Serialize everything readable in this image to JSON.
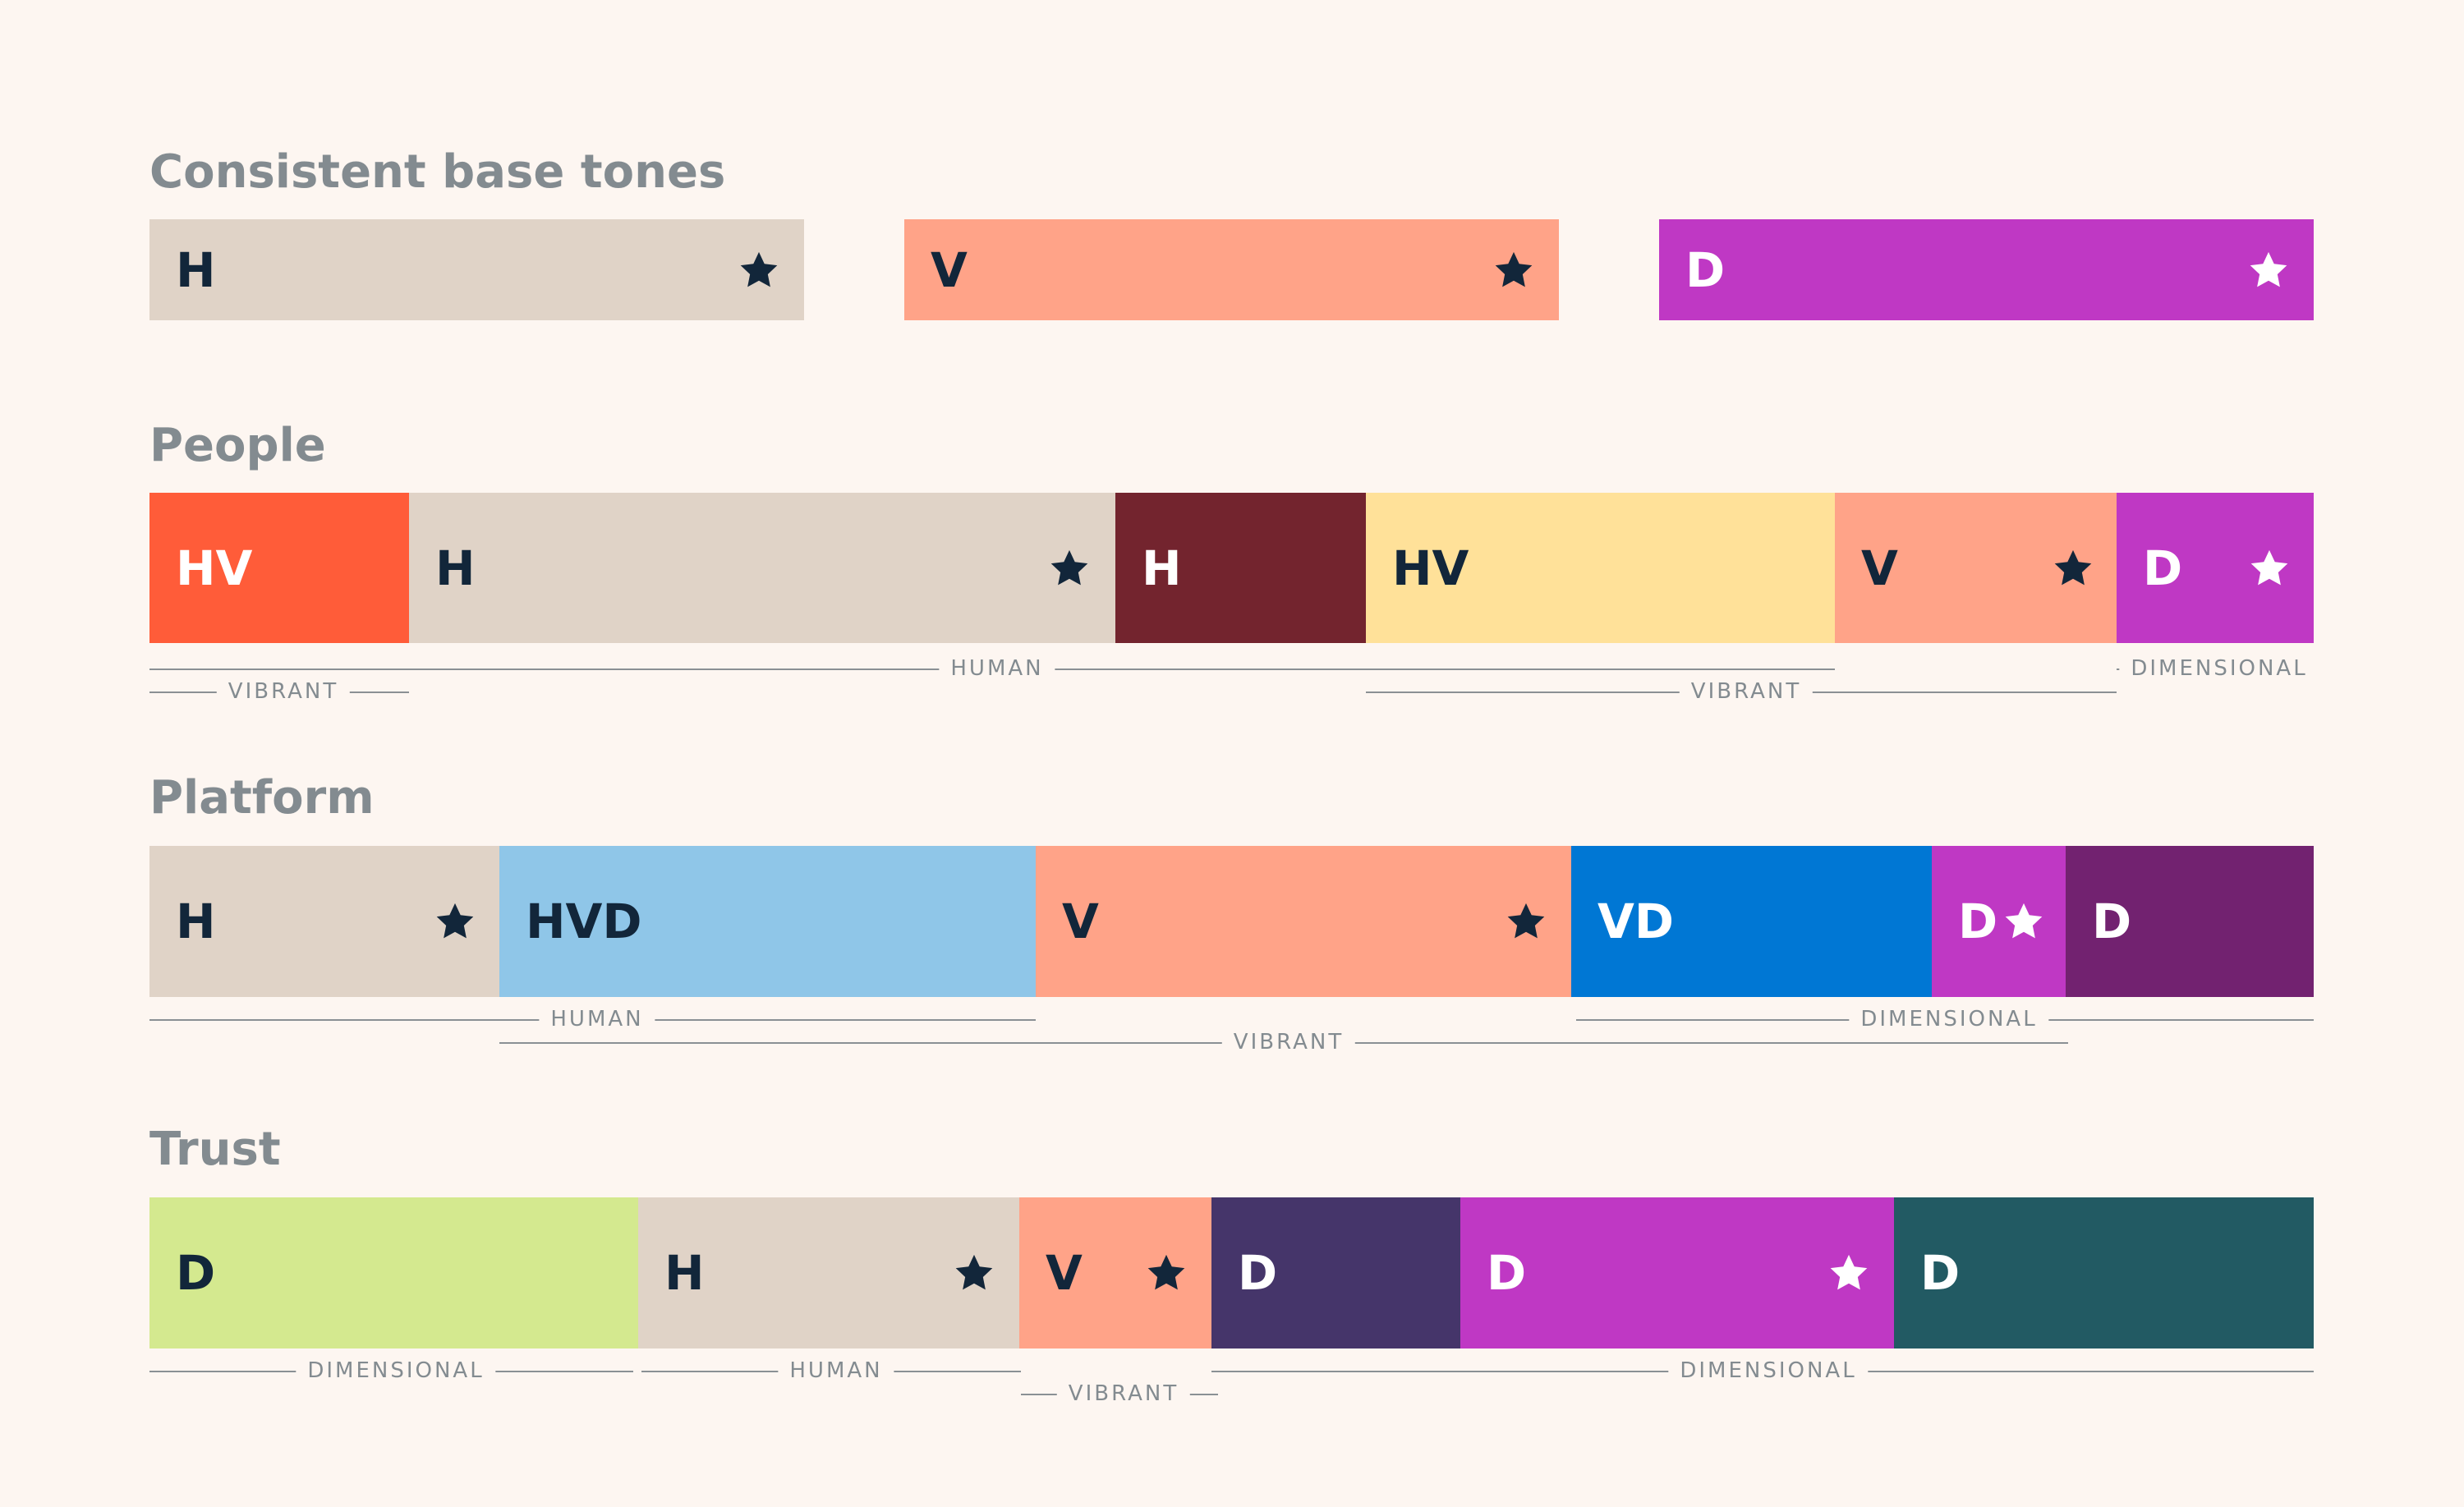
{
  "sections": [
    {
      "title": "Consistent base tones",
      "segments": [
        {
          "label": "H",
          "color": "#e0d3c7",
          "text_color": "#12263a",
          "star": "dark"
        },
        {
          "label": "V",
          "color": "#ffa388",
          "text_color": "#12263a",
          "star": "dark"
        },
        {
          "label": "D",
          "color": "#bf38c4",
          "text_color": "#ffffff",
          "star": "light"
        }
      ],
      "brackets": []
    },
    {
      "title": "People",
      "segments": [
        {
          "label": "HV",
          "color": "#ff5c39",
          "text_color": "#ffffff",
          "star": null
        },
        {
          "label": "H",
          "color": "#e0d3c7",
          "text_color": "#12263a",
          "star": "dark"
        },
        {
          "label": "H",
          "color": "#73242e",
          "text_color": "#ffffff",
          "star": null
        },
        {
          "label": "HV",
          "color": "#ffe199",
          "text_color": "#12263a",
          "star": null
        },
        {
          "label": "V",
          "color": "#ffa388",
          "text_color": "#12263a",
          "star": "dark"
        },
        {
          "label": "D",
          "color": "#bf38c4",
          "text_color": "#ffffff",
          "star": "light"
        }
      ],
      "brackets": [
        {
          "text": "VIBRANT"
        },
        {
          "text": "HUMAN"
        },
        {
          "text": "VIBRANT"
        },
        {
          "text": "DIMENSIONAL"
        }
      ]
    },
    {
      "title": "Platform",
      "segments": [
        {
          "label": "H",
          "color": "#e0d3c7",
          "text_color": "#12263a",
          "star": "dark"
        },
        {
          "label": "HVD",
          "color": "#8fc6e8",
          "text_color": "#12263a",
          "star": null
        },
        {
          "label": "V",
          "color": "#ffa388",
          "text_color": "#12263a",
          "star": "dark"
        },
        {
          "label": "VD",
          "color": "#0077d4",
          "text_color": "#ffffff",
          "star": null
        },
        {
          "label": "D",
          "color": "#bf38c4",
          "text_color": "#ffffff",
          "star": "light"
        },
        {
          "label": "D",
          "color": "#722270",
          "text_color": "#ffffff",
          "star": null
        }
      ],
      "brackets": [
        {
          "text": "HUMAN"
        },
        {
          "text": "VIBRANT"
        },
        {
          "text": "DIMENSIONAL"
        }
      ]
    },
    {
      "title": "Trust",
      "segments": [
        {
          "label": "D",
          "color": "#d4e98f",
          "text_color": "#12263a",
          "star": null
        },
        {
          "label": "H",
          "color": "#e0d3c7",
          "text_color": "#12263a",
          "star": "dark"
        },
        {
          "label": "V",
          "color": "#ffa388",
          "text_color": "#12263a",
          "star": "dark"
        },
        {
          "label": "D",
          "color": "#45356a",
          "text_color": "#ffffff",
          "star": null
        },
        {
          "label": "D",
          "color": "#bf38c4",
          "text_color": "#ffffff",
          "star": "light"
        },
        {
          "label": "D",
          "color": "#225a63",
          "text_color": "#ffffff",
          "star": null
        }
      ],
      "brackets": [
        {
          "text": "DIMENSIONAL"
        },
        {
          "text": "HUMAN"
        },
        {
          "text": "VIBRANT"
        },
        {
          "text": "DIMENSIONAL"
        }
      ]
    }
  ]
}
